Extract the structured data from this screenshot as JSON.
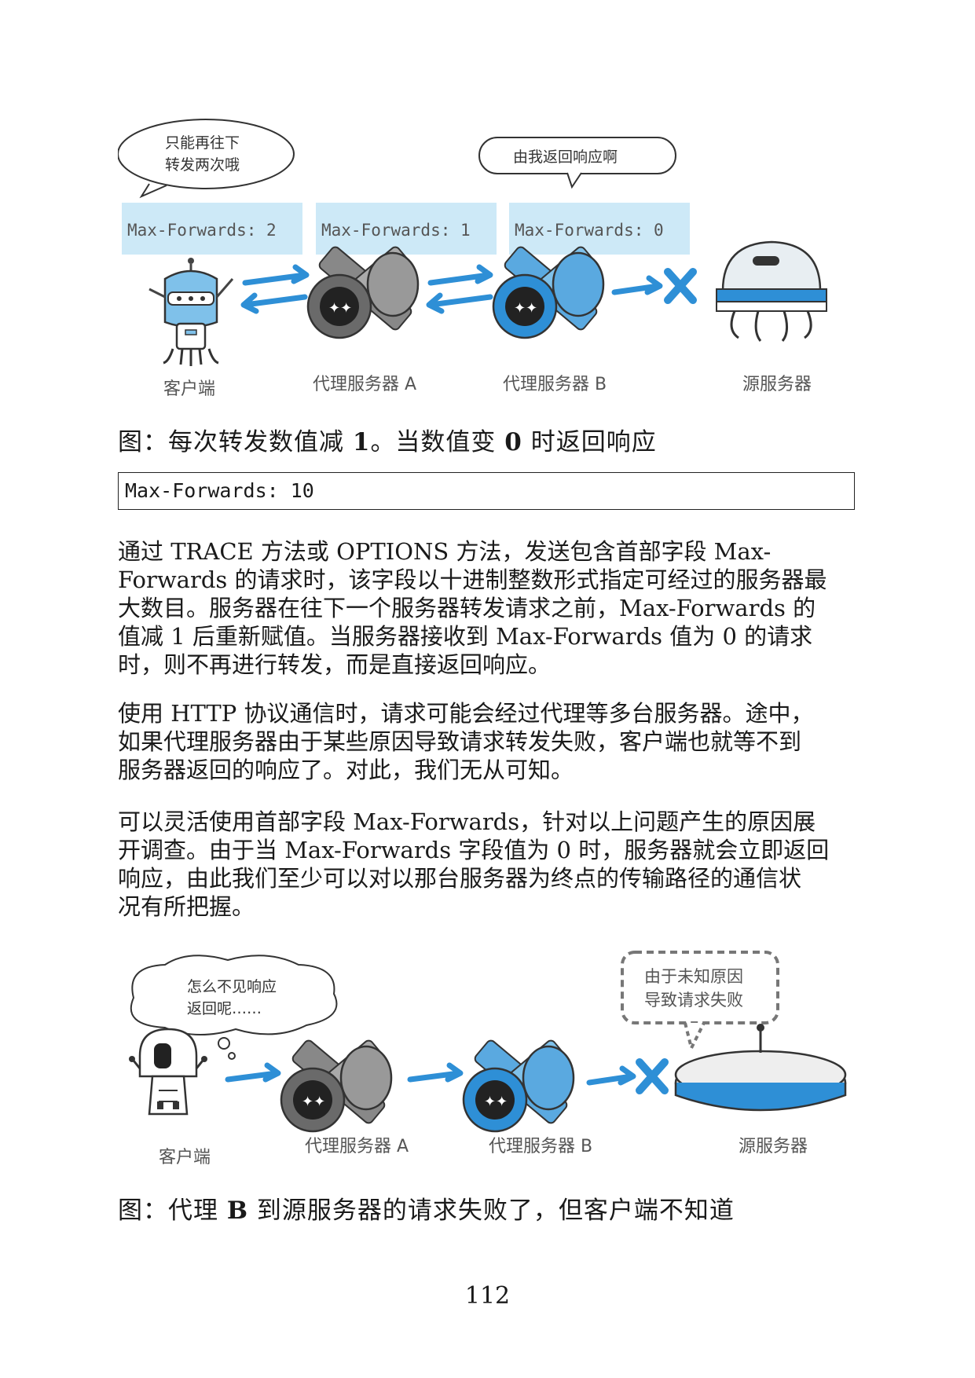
{
  "figure1": {
    "bubble_left": [
      "只能再往下",
      "转发两次哦"
    ],
    "bubble_right": "由我返回响应啊",
    "headers": [
      "Max-Forwards: 2",
      "Max-Forwards: 1",
      "Max-Forwards: 0"
    ],
    "labels": {
      "client": "客户端",
      "proxy_a": "代理服务器 A",
      "proxy_b": "代理服务器 B",
      "origin": "源服务器"
    }
  },
  "caption1": {
    "prefix": "图：每次转发数值减 ",
    "num1": "1",
    "middle": "。当数值变 ",
    "num2": "0",
    "suffix": " 时返回响应"
  },
  "code": "Max-Forwards: 10",
  "paragraphs": [
    [
      "通过 TRACE 方法或 OPTIONS 方法，发送包含首部字段 Max-",
      "Forwards 的请求时，该字段以十进制整数形式指定可经过的服务器最",
      "大数目。服务器在往下一个服务器转发请求之前，Max-Forwards 的",
      "值减 1 后重新赋值。当服务器接收到 Max-Forwards 值为 0 的请求",
      "时，则不再进行转发，而是直接返回响应。"
    ],
    [
      "使用 HTTP 协议通信时，请求可能会经过代理等多台服务器。途中，",
      "如果代理服务器由于某些原因导致请求转发失败，客户端也就等不到",
      "服务器返回的响应了。对此，我们无从可知。"
    ],
    [
      "可以灵活使用首部字段 Max-Forwards，针对以上问题产生的原因展",
      "开调查。由于当 Max-Forwards 字段值为 0 时，服务器就会立即返回",
      "响应，由此我们至少可以对以那台服务器为终点的传输路径的通信状",
      "况有所把握。"
    ]
  ],
  "figure2": {
    "bubble_left": [
      "怎么不见响应",
      "返回呢……"
    ],
    "bubble_right": [
      "由于未知原因",
      "导致请求失败"
    ],
    "labels": {
      "client": "客户端",
      "proxy_a": "代理服务器 A",
      "proxy_b": "代理服务器 B",
      "origin": "源服务器"
    }
  },
  "caption2": {
    "prefix": "图：代理 ",
    "bold": "B",
    "suffix": " 到源服务器的请求失败了，但客户端不知道"
  },
  "page_number": "112",
  "colors": {
    "accent": "#2e8fd6",
    "header_bg": "#cde9f7",
    "gray": "#6a6a6a"
  }
}
